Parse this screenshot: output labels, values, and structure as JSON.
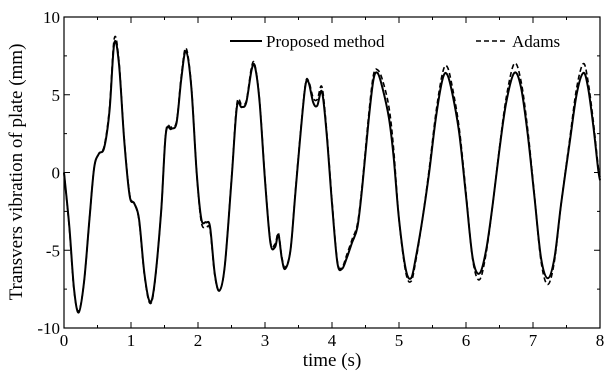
{
  "chart_data": {
    "type": "line",
    "title": "",
    "xlabel": "time (s)",
    "ylabel": "Transvers vibration of plate (mm)",
    "xlim": [
      0,
      8
    ],
    "ylim": [
      -10,
      10
    ],
    "x_ticks": [
      "0",
      "1",
      "2",
      "3",
      "4",
      "5",
      "6",
      "7",
      "8"
    ],
    "y_ticks": [
      "-10",
      "-5",
      "0",
      "5",
      "10"
    ],
    "grid": false,
    "legend_position": "top-right",
    "series": [
      {
        "name": "Proposed method",
        "style": "solid",
        "color": "#000000",
        "points": [
          [
            0,
            0
          ],
          [
            0.08,
            -3.5
          ],
          [
            0.15,
            -7.5
          ],
          [
            0.22,
            -9.0
          ],
          [
            0.3,
            -7.0
          ],
          [
            0.38,
            -3.0
          ],
          [
            0.45,
            0.3
          ],
          [
            0.52,
            1.2
          ],
          [
            0.6,
            1.6
          ],
          [
            0.68,
            4.0
          ],
          [
            0.75,
            8.3
          ],
          [
            0.82,
            7.0
          ],
          [
            0.9,
            2.0
          ],
          [
            0.98,
            -1.5
          ],
          [
            1.05,
            -2.0
          ],
          [
            1.12,
            -3.0
          ],
          [
            1.2,
            -6.5
          ],
          [
            1.28,
            -8.3
          ],
          [
            1.35,
            -7.2
          ],
          [
            1.45,
            -2.5
          ],
          [
            1.52,
            2.5
          ],
          [
            1.6,
            2.8
          ],
          [
            1.68,
            3.2
          ],
          [
            1.75,
            6.0
          ],
          [
            1.82,
            7.8
          ],
          [
            1.9,
            5.5
          ],
          [
            1.98,
            0.0
          ],
          [
            2.05,
            -3.0
          ],
          [
            2.12,
            -3.2
          ],
          [
            2.18,
            -3.5
          ],
          [
            2.25,
            -6.5
          ],
          [
            2.32,
            -7.6
          ],
          [
            2.4,
            -6.0
          ],
          [
            2.5,
            -0.5
          ],
          [
            2.58,
            4.2
          ],
          [
            2.65,
            4.2
          ],
          [
            2.72,
            4.5
          ],
          [
            2.8,
            6.6
          ],
          [
            2.85,
            6.8
          ],
          [
            2.92,
            4.5
          ],
          [
            3.0,
            -0.5
          ],
          [
            3.08,
            -4.5
          ],
          [
            3.15,
            -4.8
          ],
          [
            3.2,
            -4.0
          ],
          [
            3.25,
            -5.5
          ],
          [
            3.3,
            -6.2
          ],
          [
            3.38,
            -5.0
          ],
          [
            3.45,
            -1.5
          ],
          [
            3.52,
            2.0
          ],
          [
            3.6,
            5.5
          ],
          [
            3.65,
            5.8
          ],
          [
            3.72,
            4.5
          ],
          [
            3.78,
            4.3
          ],
          [
            3.85,
            5.2
          ],
          [
            3.92,
            2.5
          ],
          [
            4.0,
            -2.0
          ],
          [
            4.08,
            -5.8
          ],
          [
            4.15,
            -6.2
          ],
          [
            4.22,
            -5.5
          ],
          [
            4.3,
            -4.5
          ],
          [
            4.38,
            -3.5
          ],
          [
            4.45,
            -1.0
          ],
          [
            4.55,
            3.5
          ],
          [
            4.62,
            6.0
          ],
          [
            4.68,
            6.4
          ],
          [
            4.75,
            5.5
          ],
          [
            4.85,
            3.5
          ],
          [
            4.92,
            1.0
          ],
          [
            5.0,
            -3.0
          ],
          [
            5.1,
            -6.2
          ],
          [
            5.18,
            -6.8
          ],
          [
            5.25,
            -5.5
          ],
          [
            5.35,
            -3.0
          ],
          [
            5.45,
            0.0
          ],
          [
            5.55,
            3.5
          ],
          [
            5.65,
            6.0
          ],
          [
            5.72,
            6.3
          ],
          [
            5.8,
            5.0
          ],
          [
            5.9,
            2.5
          ],
          [
            6.0,
            -1.5
          ],
          [
            6.1,
            -5.5
          ],
          [
            6.2,
            -6.5
          ],
          [
            6.3,
            -5.0
          ],
          [
            6.4,
            -2.0
          ],
          [
            6.5,
            1.5
          ],
          [
            6.6,
            4.5
          ],
          [
            6.72,
            6.4
          ],
          [
            6.82,
            5.5
          ],
          [
            6.92,
            2.5
          ],
          [
            7.02,
            -1.5
          ],
          [
            7.12,
            -5.5
          ],
          [
            7.22,
            -6.8
          ],
          [
            7.32,
            -5.5
          ],
          [
            7.42,
            -2.0
          ],
          [
            7.55,
            2.0
          ],
          [
            7.65,
            5.0
          ],
          [
            7.75,
            6.4
          ],
          [
            7.82,
            5.5
          ],
          [
            7.9,
            3.0
          ],
          [
            7.97,
            0.3
          ],
          [
            8.0,
            -0.5
          ]
        ]
      },
      {
        "name": "Adams",
        "style": "dashed",
        "color": "#000000",
        "points": [
          [
            0,
            0
          ],
          [
            0.08,
            -3.6
          ],
          [
            0.15,
            -7.6
          ],
          [
            0.22,
            -8.9
          ],
          [
            0.3,
            -7.0
          ],
          [
            0.38,
            -3.0
          ],
          [
            0.45,
            0.3
          ],
          [
            0.52,
            1.2
          ],
          [
            0.6,
            1.7
          ],
          [
            0.68,
            4.2
          ],
          [
            0.75,
            8.6
          ],
          [
            0.82,
            7.2
          ],
          [
            0.9,
            2.1
          ],
          [
            0.98,
            -1.4
          ],
          [
            1.05,
            -2.0
          ],
          [
            1.12,
            -3.1
          ],
          [
            1.2,
            -6.6
          ],
          [
            1.28,
            -8.4
          ],
          [
            1.35,
            -7.3
          ],
          [
            1.45,
            -2.5
          ],
          [
            1.52,
            2.6
          ],
          [
            1.6,
            2.9
          ],
          [
            1.68,
            3.3
          ],
          [
            1.75,
            6.2
          ],
          [
            1.82,
            8.0
          ],
          [
            1.9,
            5.6
          ],
          [
            1.98,
            0.0
          ],
          [
            2.05,
            -3.2
          ],
          [
            2.12,
            -3.5
          ],
          [
            2.18,
            -3.7
          ],
          [
            2.25,
            -6.6
          ],
          [
            2.32,
            -7.6
          ],
          [
            2.4,
            -6.0
          ],
          [
            2.5,
            -0.4
          ],
          [
            2.58,
            4.4
          ],
          [
            2.65,
            4.4
          ],
          [
            2.72,
            4.6
          ],
          [
            2.8,
            6.8
          ],
          [
            2.85,
            6.9
          ],
          [
            2.92,
            4.6
          ],
          [
            3.0,
            -0.4
          ],
          [
            3.08,
            -4.4
          ],
          [
            3.15,
            -4.6
          ],
          [
            3.2,
            -3.9
          ],
          [
            3.25,
            -5.4
          ],
          [
            3.3,
            -6.1
          ],
          [
            3.38,
            -5.0
          ],
          [
            3.45,
            -1.4
          ],
          [
            3.52,
            2.1
          ],
          [
            3.6,
            5.6
          ],
          [
            3.65,
            5.9
          ],
          [
            3.72,
            4.8
          ],
          [
            3.78,
            4.7
          ],
          [
            3.85,
            5.5
          ],
          [
            3.92,
            2.7
          ],
          [
            4.0,
            -1.8
          ],
          [
            4.08,
            -5.7
          ],
          [
            4.15,
            -6.1
          ],
          [
            4.22,
            -5.3
          ],
          [
            4.3,
            -4.3
          ],
          [
            4.38,
            -3.3
          ],
          [
            4.45,
            -0.8
          ],
          [
            4.55,
            3.8
          ],
          [
            4.62,
            6.3
          ],
          [
            4.68,
            6.6
          ],
          [
            4.75,
            6.0
          ],
          [
            4.85,
            4.2
          ],
          [
            4.92,
            1.5
          ],
          [
            5.0,
            -3.0
          ],
          [
            5.1,
            -6.4
          ],
          [
            5.18,
            -7.0
          ],
          [
            5.25,
            -5.7
          ],
          [
            5.35,
            -3.0
          ],
          [
            5.45,
            0.2
          ],
          [
            5.55,
            3.8
          ],
          [
            5.65,
            6.4
          ],
          [
            5.72,
            6.8
          ],
          [
            5.8,
            5.4
          ],
          [
            5.9,
            2.8
          ],
          [
            6.0,
            -1.3
          ],
          [
            6.1,
            -5.6
          ],
          [
            6.2,
            -6.9
          ],
          [
            6.3,
            -5.2
          ],
          [
            6.4,
            -2.0
          ],
          [
            6.5,
            1.6
          ],
          [
            6.6,
            4.8
          ],
          [
            6.72,
            7.0
          ],
          [
            6.82,
            5.9
          ],
          [
            6.92,
            2.8
          ],
          [
            7.02,
            -1.4
          ],
          [
            7.12,
            -5.7
          ],
          [
            7.22,
            -7.2
          ],
          [
            7.32,
            -5.7
          ],
          [
            7.42,
            -2.0
          ],
          [
            7.55,
            2.2
          ],
          [
            7.65,
            5.4
          ],
          [
            7.75,
            7.0
          ],
          [
            7.82,
            5.9
          ],
          [
            7.9,
            3.3
          ],
          [
            7.97,
            0.5
          ],
          [
            8.0,
            -0.3
          ]
        ]
      }
    ]
  }
}
